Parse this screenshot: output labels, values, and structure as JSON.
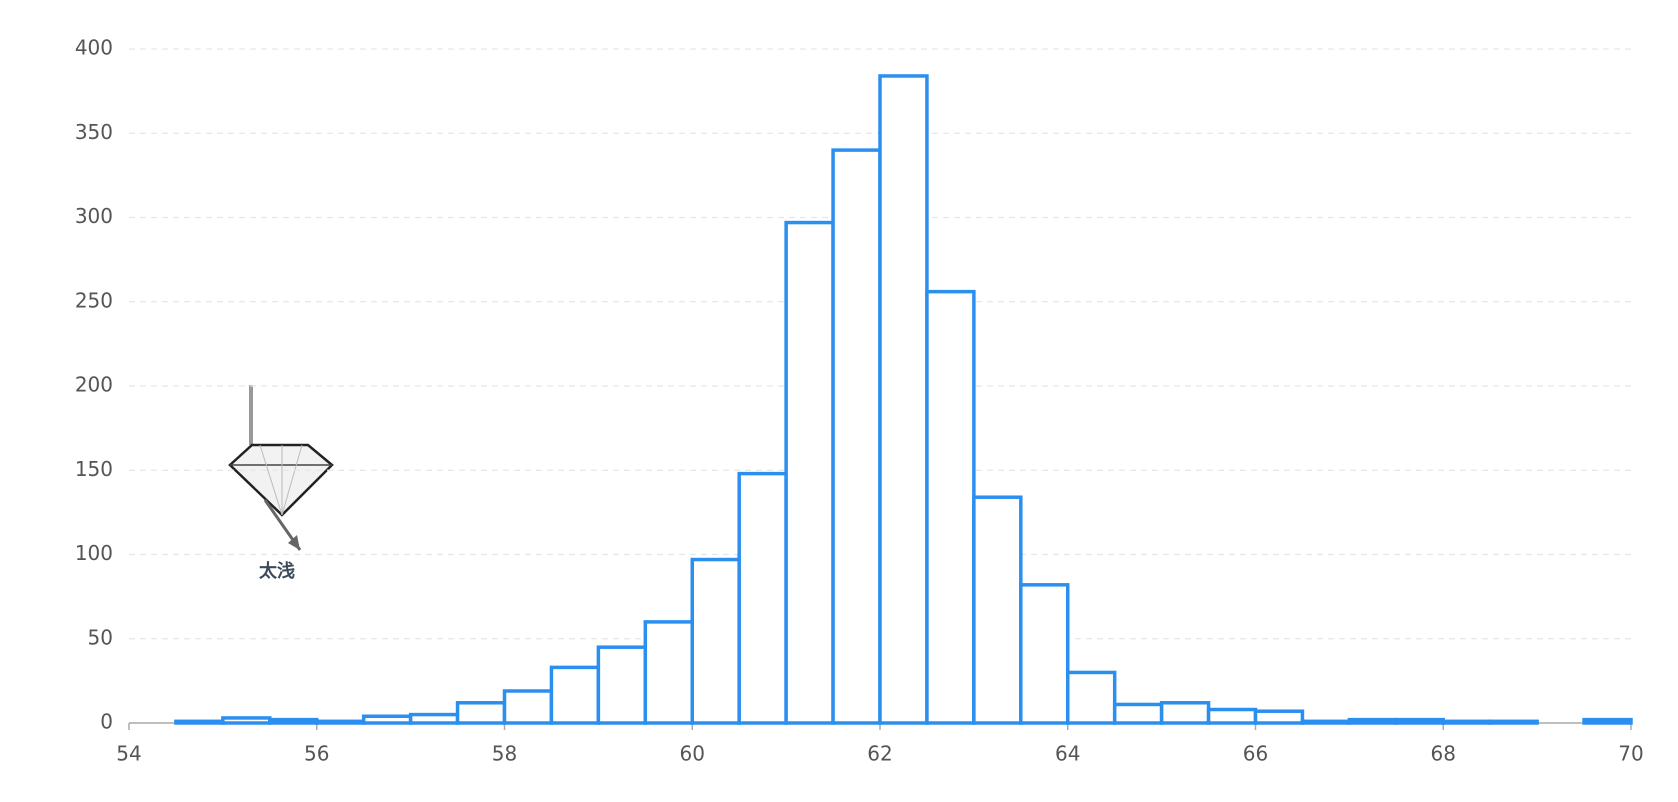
{
  "chart_data": {
    "type": "histogram",
    "bins": [
      54.5,
      55,
      55.5,
      56,
      56.5,
      57,
      57.5,
      58,
      58.5,
      59,
      59.5,
      60,
      60.5,
      61,
      61.5,
      62,
      62.5,
      63,
      63.5,
      64,
      64.5,
      65,
      65.5,
      66,
      66.5,
      67,
      67.5,
      68,
      68.5,
      69,
      69.5,
      70
    ],
    "values": [
      1,
      3,
      2,
      1,
      4,
      5,
      12,
      19,
      33,
      45,
      60,
      97,
      148,
      297,
      340,
      384,
      256,
      134,
      82,
      30,
      11,
      12,
      8,
      7,
      1,
      2,
      2,
      1,
      1,
      0,
      2
    ],
    "color": "#2b8ff0",
    "xlim": [
      54,
      70
    ],
    "xticks": [
      54,
      56,
      58,
      60,
      62,
      64,
      66,
      68,
      70
    ],
    "ylim": [
      0,
      400
    ],
    "yticks": [
      0,
      50,
      100,
      150,
      200,
      250,
      300,
      350,
      400
    ],
    "grid": true,
    "annotation": "太浅"
  }
}
